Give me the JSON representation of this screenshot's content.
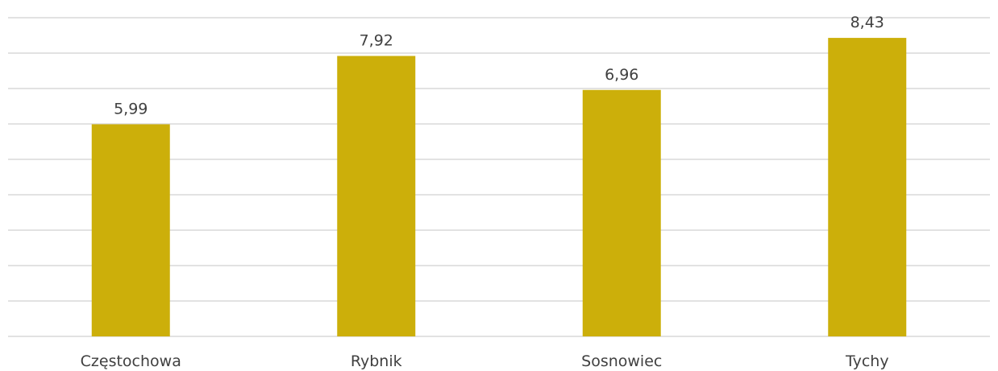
{
  "chart_data": {
    "type": "bar",
    "categories": [
      "Częstochowa",
      "Rybnik",
      "Sosnowiec",
      "Tychy"
    ],
    "values": [
      5.99,
      7.92,
      6.96,
      8.43
    ],
    "value_labels": [
      "5,99",
      "7,92",
      "6,96",
      "8,43"
    ],
    "title": "",
    "xlabel": "",
    "ylabel": "",
    "ylim": [
      0,
      9
    ],
    "grid": true,
    "legend": "none",
    "colors": {
      "bar": "#CCAF0A",
      "grid": "#D9D9D9",
      "text": "#404040"
    }
  }
}
